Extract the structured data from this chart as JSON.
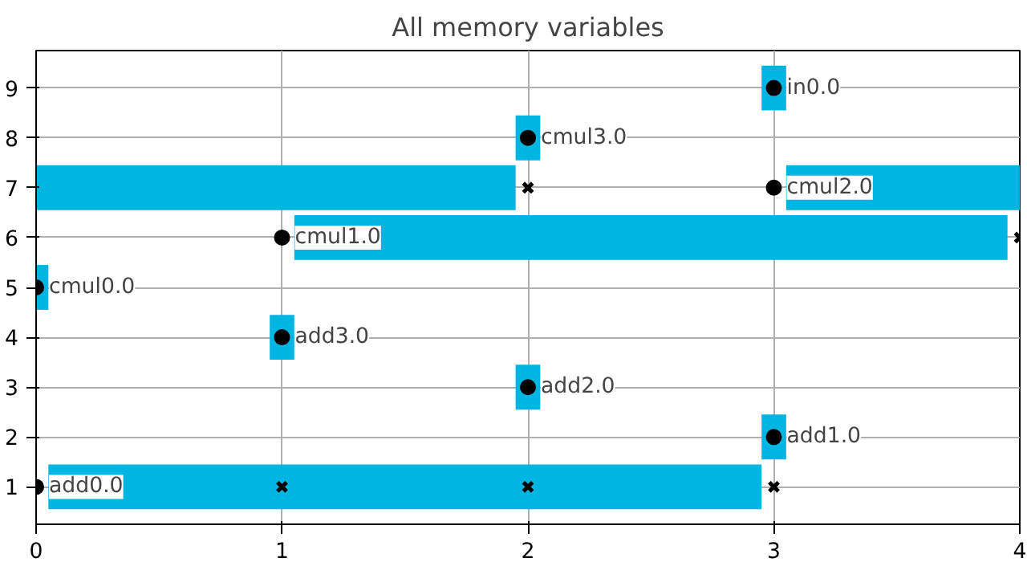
{
  "chart_data": {
    "type": "bar",
    "orientation": "horizontal",
    "title": "All memory variables",
    "categories": [
      "9",
      "8",
      "7",
      "6",
      "5",
      "4",
      "3",
      "2",
      "1"
    ],
    "xlim": [
      0,
      4
    ],
    "xticks": [
      0,
      1,
      2,
      3,
      4
    ],
    "grid": true,
    "series": [
      {
        "color": "#00b5e2",
        "base": [
          2.95,
          1.95,
          0,
          1.05,
          0,
          0.95,
          1.95,
          2.95,
          0.05
        ],
        "values": [
          0.1,
          0.1,
          1.95,
          2.9,
          0.05,
          0.1,
          0.1,
          0.1,
          2.9
        ]
      },
      {
        "color": "#00b5e2",
        "base": [
          null,
          null,
          3.05,
          null,
          null,
          null,
          null,
          null,
          null
        ],
        "values": [
          null,
          null,
          0.95,
          null,
          null,
          null,
          null,
          null,
          null
        ]
      },
      {
        "type": "scatter",
        "marker": "circle",
        "color": "#000000",
        "values": [
          3,
          2,
          3,
          1,
          0,
          1,
          2,
          3,
          0
        ]
      },
      {
        "type": "scatter",
        "marker": "cross",
        "color": "#000000",
        "values": [
          null,
          null,
          2,
          4,
          null,
          null,
          null,
          null,
          1
        ]
      },
      {
        "type": "scatter",
        "marker": "cross",
        "color": "#000000",
        "values": [
          null,
          null,
          null,
          null,
          null,
          null,
          null,
          null,
          2
        ]
      },
      {
        "type": "scatter",
        "marker": "cross",
        "color": "#000000",
        "values": [
          null,
          null,
          null,
          null,
          null,
          null,
          null,
          null,
          3
        ]
      }
    ],
    "annotations": [
      {
        "text": "in0.0",
        "x": 3,
        "y": "9"
      },
      {
        "text": "cmul3.0",
        "x": 2,
        "y": "8"
      },
      {
        "text": "cmul2.0",
        "x": 3,
        "y": "7"
      },
      {
        "text": "cmul1.0",
        "x": 1,
        "y": "6"
      },
      {
        "text": "cmul0.0",
        "x": 0,
        "y": "5"
      },
      {
        "text": "add3.0",
        "x": 1,
        "y": "4"
      },
      {
        "text": "add2.0",
        "x": 2,
        "y": "3"
      },
      {
        "text": "add1.0",
        "x": 3,
        "y": "2"
      },
      {
        "text": "add0.0",
        "x": 0,
        "y": "1"
      }
    ]
  }
}
